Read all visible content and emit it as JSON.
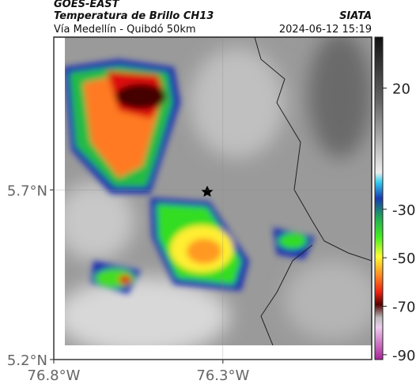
{
  "header": {
    "source": "GOES-EAST",
    "title": "Temperatura de Brillo CH13",
    "brand": "SIATA",
    "subtitle": "Vía Medellín - Quibdó 50km",
    "timestamp": "2024-06-12 15:19"
  },
  "map": {
    "xlim": [
      -76.8,
      -75.86
    ],
    "ylim": [
      5.2,
      6.15
    ],
    "xticks": [
      {
        "value": -76.8,
        "label": "76.8°W"
      },
      {
        "value": -76.3,
        "label": "76.3°W"
      }
    ],
    "yticks": [
      {
        "value": 5.7,
        "label": "5.7°N"
      },
      {
        "value": 5.2,
        "label": "5.2°N"
      }
    ],
    "colorbar": {
      "lim": [
        -92,
        41
      ],
      "ticks": [
        20,
        -30,
        -50,
        -70,
        -90
      ]
    }
  }
}
